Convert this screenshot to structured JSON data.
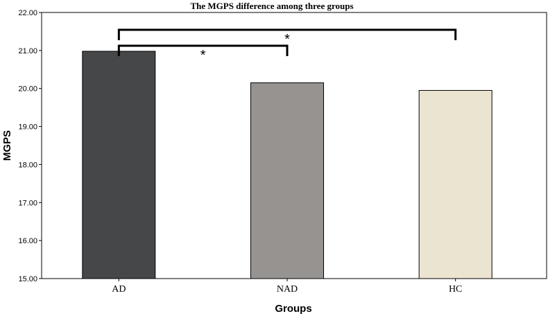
{
  "chart_data": {
    "type": "bar",
    "title": "The MGPS difference among three groups",
    "xlabel": "Groups",
    "ylabel": "MGPS",
    "categories": [
      "AD",
      "NAD",
      "HC"
    ],
    "values": [
      20.98,
      20.15,
      19.95
    ],
    "colors": [
      "#464749",
      "#979391",
      "#ebe4d0"
    ],
    "ylim": [
      15.0,
      22.0
    ],
    "yticks": [
      "15.00",
      "16.00",
      "17.00",
      "18.00",
      "19.00",
      "20.00",
      "21.00",
      "22.00"
    ],
    "grid": false,
    "legend": "none",
    "significance": [
      {
        "from": "AD",
        "to": "NAD",
        "label": "*"
      },
      {
        "from": "AD",
        "to": "HC",
        "label": "*"
      }
    ]
  }
}
